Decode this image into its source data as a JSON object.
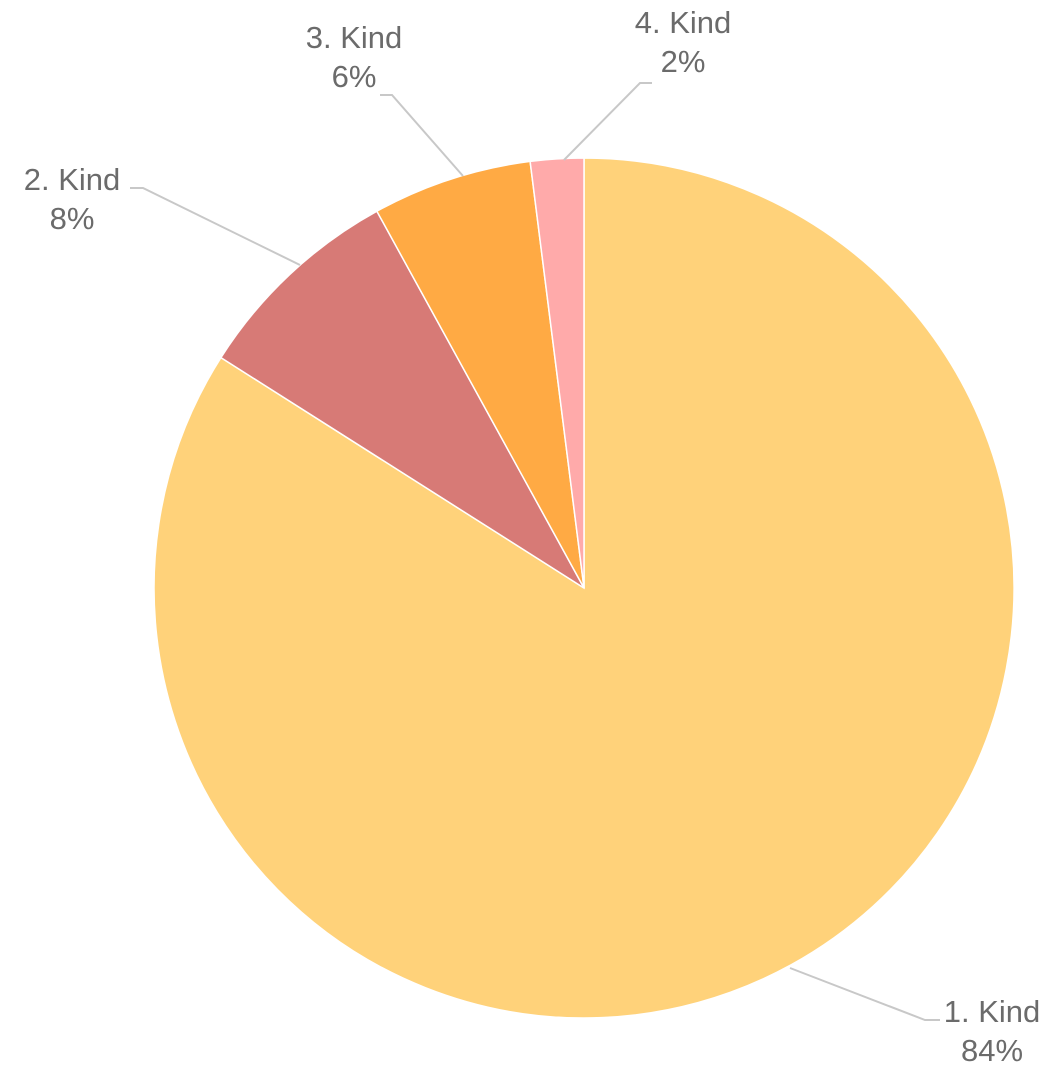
{
  "chart_data": {
    "type": "pie",
    "title": "",
    "start_angle": "12 o'clock",
    "direction": "clockwise",
    "slices": [
      {
        "label": "1. Kind",
        "value": 84,
        "value_label": "84%",
        "color": "#FFD27A"
      },
      {
        "label": "2. Kind",
        "value": 8,
        "value_label": "8%",
        "color": "#D77A76"
      },
      {
        "label": "3. Kind",
        "value": 6,
        "value_label": "6%",
        "color": "#FFAA44"
      },
      {
        "label": "4. Kind",
        "value": 2,
        "value_label": "2%",
        "color": "#FFAAAA"
      }
    ],
    "leader_line_color": "#c8c8c8",
    "label_color": "#6b6b6b"
  }
}
